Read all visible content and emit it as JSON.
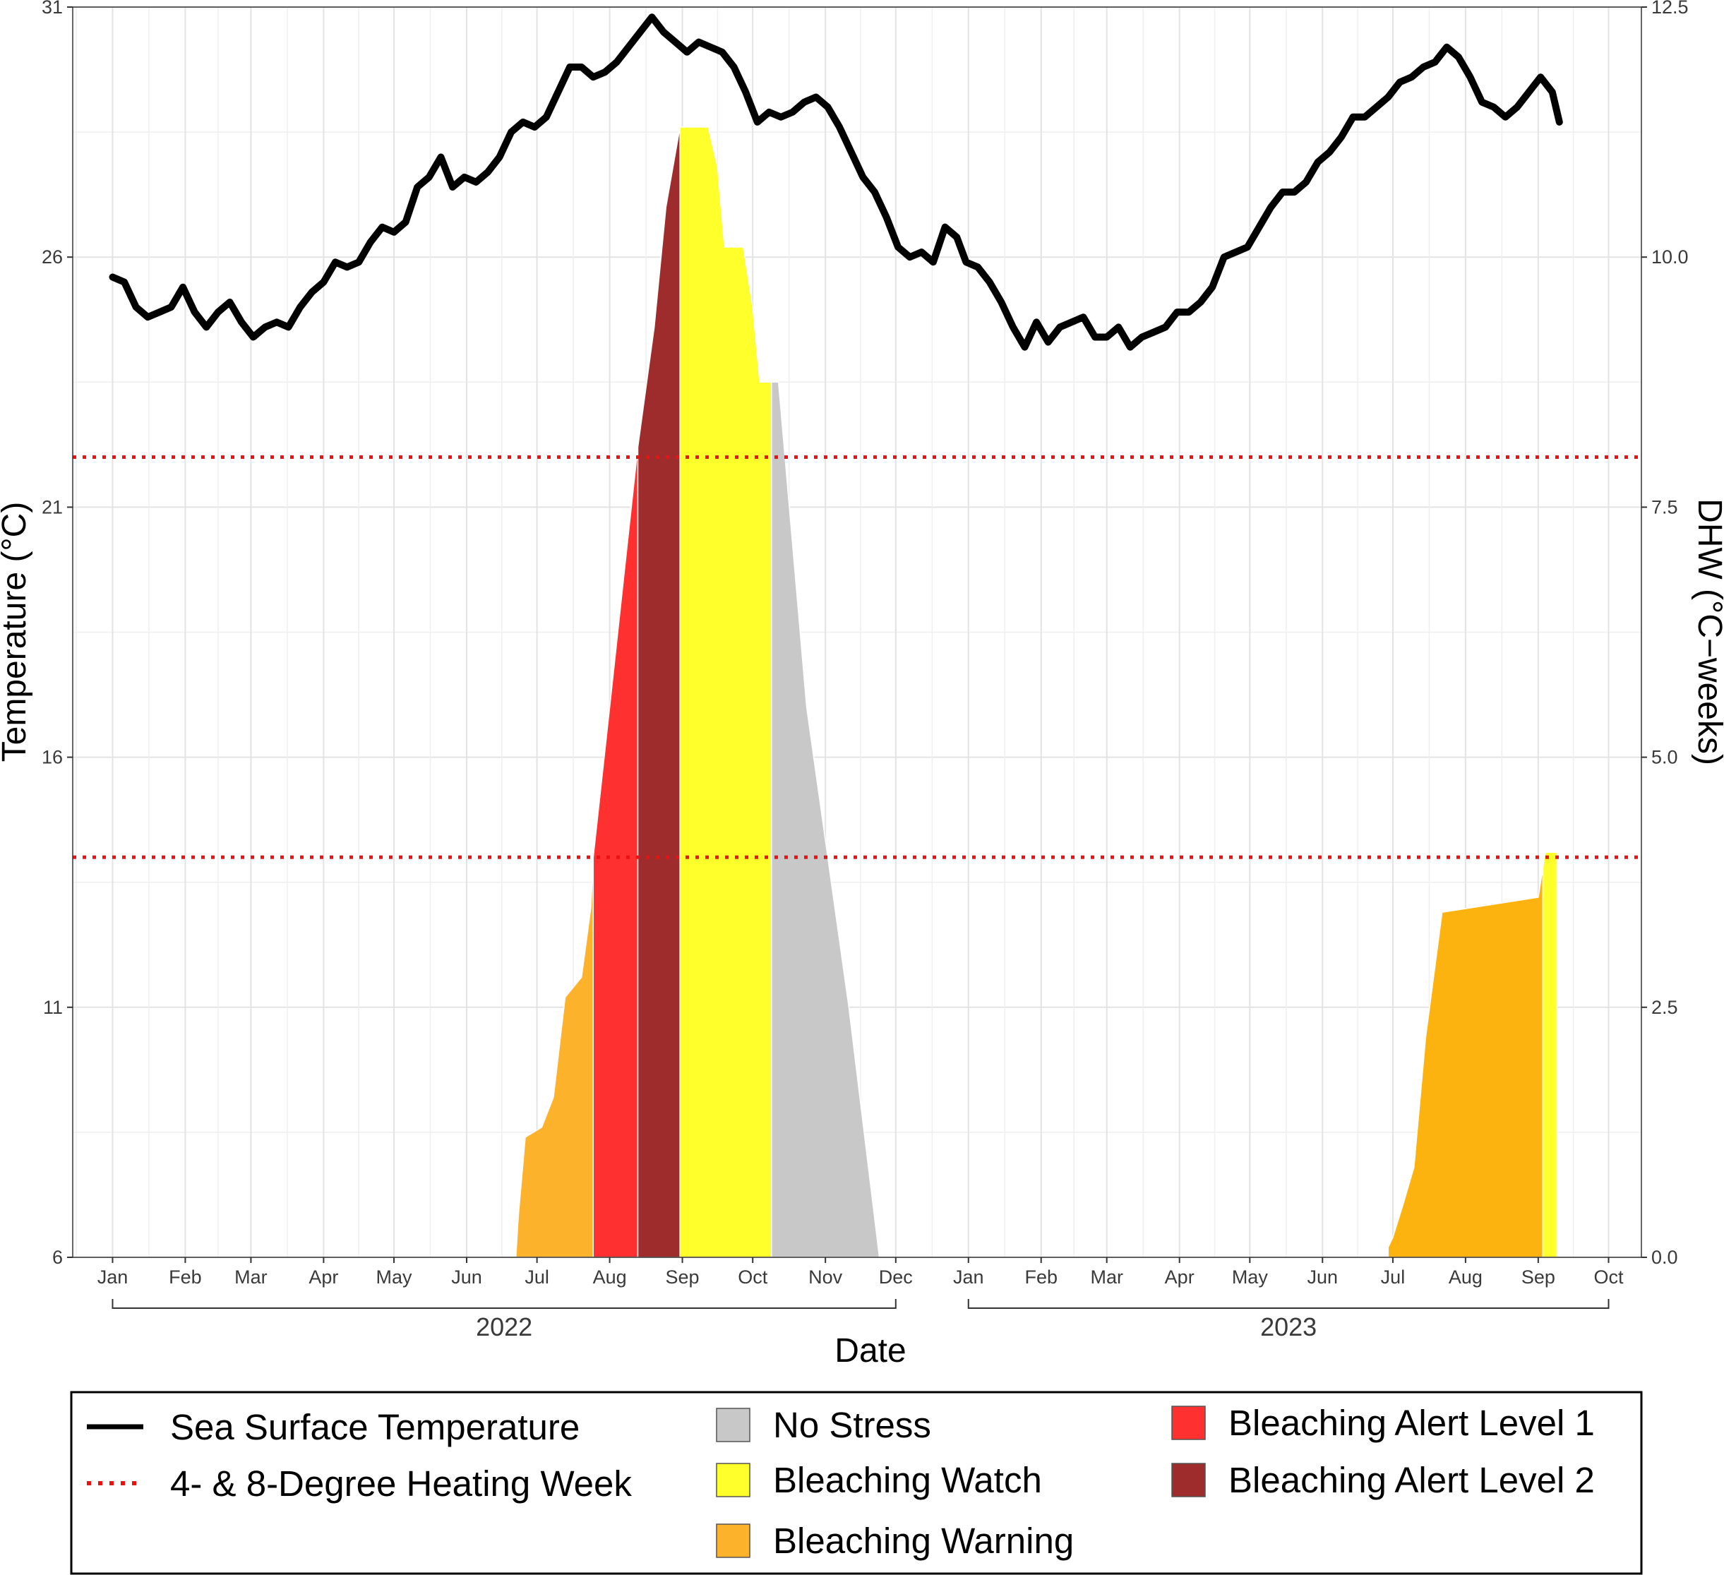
{
  "chart_data": {
    "type": "line",
    "xlabel": "Date",
    "ylabel_left": "Temperature (°C)",
    "ylabel_right": "DHW (°C−weeks)",
    "ylim_left": [
      6,
      31
    ],
    "ylim_right": [
      0,
      12.5
    ],
    "left_ticks": [
      "6",
      "11",
      "16",
      "21",
      "26",
      "31"
    ],
    "right_ticks": [
      "0.0",
      "2.5",
      "5.0",
      "7.5",
      "10.0",
      "12.5"
    ],
    "x_range": [
      "2021-12-15",
      "2023-10-15"
    ],
    "month_ticks": [
      {
        "date": "2022-01-01",
        "label": "Jan"
      },
      {
        "date": "2022-02-01",
        "label": "Feb"
      },
      {
        "date": "2022-03-01",
        "label": "Mar"
      },
      {
        "date": "2022-04-01",
        "label": "Apr"
      },
      {
        "date": "2022-05-01",
        "label": "May"
      },
      {
        "date": "2022-06-01",
        "label": "Jun"
      },
      {
        "date": "2022-07-01",
        "label": "Jul"
      },
      {
        "date": "2022-08-01",
        "label": "Aug"
      },
      {
        "date": "2022-09-01",
        "label": "Sep"
      },
      {
        "date": "2022-10-01",
        "label": "Oct"
      },
      {
        "date": "2022-11-01",
        "label": "Nov"
      },
      {
        "date": "2022-12-01",
        "label": "Dec"
      },
      {
        "date": "2023-01-01",
        "label": "Jan"
      },
      {
        "date": "2023-02-01",
        "label": "Feb"
      },
      {
        "date": "2023-03-01",
        "label": "Mar"
      },
      {
        "date": "2023-04-01",
        "label": "Apr"
      },
      {
        "date": "2023-05-01",
        "label": "May"
      },
      {
        "date": "2023-06-01",
        "label": "Jun"
      },
      {
        "date": "2023-07-01",
        "label": "Jul"
      },
      {
        "date": "2023-08-01",
        "label": "Aug"
      },
      {
        "date": "2023-09-01",
        "label": "Sep"
      },
      {
        "date": "2023-10-01",
        "label": "Oct"
      }
    ],
    "year_groups": [
      {
        "label": "2022",
        "start": "2022-01-01",
        "end": "2022-12-01"
      },
      {
        "label": "2023",
        "start": "2023-01-01",
        "end": "2023-10-01"
      }
    ],
    "dhw_thresholds": [
      4,
      8
    ],
    "sst_series": {
      "name": "Sea Surface Temperature",
      "color": "#000000",
      "points": [
        [
          "2022-01-01",
          25.6
        ],
        [
          "2022-01-06",
          25.5
        ],
        [
          "2022-01-11",
          25.0
        ],
        [
          "2022-01-16",
          24.8
        ],
        [
          "2022-01-21",
          24.9
        ],
        [
          "2022-01-26",
          25.0
        ],
        [
          "2022-01-31",
          25.4
        ],
        [
          "2022-02-05",
          24.9
        ],
        [
          "2022-02-10",
          24.6
        ],
        [
          "2022-02-15",
          24.9
        ],
        [
          "2022-02-20",
          25.1
        ],
        [
          "2022-02-25",
          24.7
        ],
        [
          "2022-03-02",
          24.4
        ],
        [
          "2022-03-07",
          24.6
        ],
        [
          "2022-03-12",
          24.7
        ],
        [
          "2022-03-17",
          24.6
        ],
        [
          "2022-03-22",
          25.0
        ],
        [
          "2022-03-27",
          25.3
        ],
        [
          "2022-04-01",
          25.5
        ],
        [
          "2022-04-06",
          25.9
        ],
        [
          "2022-04-11",
          25.8
        ],
        [
          "2022-04-16",
          25.9
        ],
        [
          "2022-04-21",
          26.3
        ],
        [
          "2022-04-26",
          26.6
        ],
        [
          "2022-05-01",
          26.5
        ],
        [
          "2022-05-06",
          26.7
        ],
        [
          "2022-05-11",
          27.4
        ],
        [
          "2022-05-16",
          27.6
        ],
        [
          "2022-05-21",
          28.0
        ],
        [
          "2022-05-26",
          27.4
        ],
        [
          "2022-05-31",
          27.6
        ],
        [
          "2022-06-05",
          27.5
        ],
        [
          "2022-06-10",
          27.7
        ],
        [
          "2022-06-15",
          28.0
        ],
        [
          "2022-06-20",
          28.5
        ],
        [
          "2022-06-25",
          28.7
        ],
        [
          "2022-06-30",
          28.6
        ],
        [
          "2022-07-05",
          28.8
        ],
        [
          "2022-07-10",
          29.3
        ],
        [
          "2022-07-15",
          29.8
        ],
        [
          "2022-07-20",
          29.8
        ],
        [
          "2022-07-25",
          29.6
        ],
        [
          "2022-07-30",
          29.7
        ],
        [
          "2022-08-04",
          29.9
        ],
        [
          "2022-08-09",
          30.2
        ],
        [
          "2022-08-14",
          30.5
        ],
        [
          "2022-08-19",
          30.8
        ],
        [
          "2022-08-24",
          30.5
        ],
        [
          "2022-08-29",
          30.3
        ],
        [
          "2022-09-03",
          30.1
        ],
        [
          "2022-09-08",
          30.3
        ],
        [
          "2022-09-13",
          30.2
        ],
        [
          "2022-09-18",
          30.1
        ],
        [
          "2022-09-23",
          29.8
        ],
        [
          "2022-09-28",
          29.3
        ],
        [
          "2022-10-03",
          28.7
        ],
        [
          "2022-10-08",
          28.9
        ],
        [
          "2022-10-13",
          28.8
        ],
        [
          "2022-10-18",
          28.9
        ],
        [
          "2022-10-23",
          29.1
        ],
        [
          "2022-10-28",
          29.2
        ],
        [
          "2022-11-02",
          29.0
        ],
        [
          "2022-11-07",
          28.6
        ],
        [
          "2022-11-12",
          28.1
        ],
        [
          "2022-11-17",
          27.6
        ],
        [
          "2022-11-22",
          27.3
        ],
        [
          "2022-11-27",
          26.8
        ],
        [
          "2022-12-02",
          26.2
        ],
        [
          "2022-12-07",
          26.0
        ],
        [
          "2022-12-12",
          26.1
        ],
        [
          "2022-12-17",
          25.9
        ],
        [
          "2022-12-22",
          26.6
        ],
        [
          "2022-12-27",
          26.4
        ],
        [
          "2022-12-31",
          25.9
        ],
        [
          "2023-01-05",
          25.8
        ],
        [
          "2023-01-10",
          25.5
        ],
        [
          "2023-01-15",
          25.1
        ],
        [
          "2023-01-20",
          24.6
        ],
        [
          "2023-01-25",
          24.2
        ],
        [
          "2023-01-30",
          24.7
        ],
        [
          "2023-02-04",
          24.3
        ],
        [
          "2023-02-09",
          24.6
        ],
        [
          "2023-02-14",
          24.7
        ],
        [
          "2023-02-19",
          24.8
        ],
        [
          "2023-02-24",
          24.4
        ],
        [
          "2023-03-01",
          24.4
        ],
        [
          "2023-03-06",
          24.6
        ],
        [
          "2023-03-11",
          24.2
        ],
        [
          "2023-03-16",
          24.4
        ],
        [
          "2023-03-21",
          24.5
        ],
        [
          "2023-03-26",
          24.6
        ],
        [
          "2023-03-31",
          24.9
        ],
        [
          "2023-04-05",
          24.9
        ],
        [
          "2023-04-10",
          25.1
        ],
        [
          "2023-04-15",
          25.4
        ],
        [
          "2023-04-20",
          26.0
        ],
        [
          "2023-04-25",
          26.1
        ],
        [
          "2023-04-30",
          26.2
        ],
        [
          "2023-05-05",
          26.6
        ],
        [
          "2023-05-10",
          27.0
        ],
        [
          "2023-05-15",
          27.3
        ],
        [
          "2023-05-20",
          27.3
        ],
        [
          "2023-05-25",
          27.5
        ],
        [
          "2023-05-30",
          27.9
        ],
        [
          "2023-06-04",
          28.1
        ],
        [
          "2023-06-09",
          28.4
        ],
        [
          "2023-06-14",
          28.8
        ],
        [
          "2023-06-19",
          28.8
        ],
        [
          "2023-06-24",
          29.0
        ],
        [
          "2023-06-29",
          29.2
        ],
        [
          "2023-07-04",
          29.5
        ],
        [
          "2023-07-09",
          29.6
        ],
        [
          "2023-07-14",
          29.8
        ],
        [
          "2023-07-19",
          29.9
        ],
        [
          "2023-07-24",
          30.2
        ],
        [
          "2023-07-29",
          30.0
        ],
        [
          "2023-08-03",
          29.6
        ],
        [
          "2023-08-08",
          29.1
        ],
        [
          "2023-08-13",
          29.0
        ],
        [
          "2023-08-18",
          28.8
        ],
        [
          "2023-08-23",
          29.0
        ],
        [
          "2023-08-28",
          29.3
        ],
        [
          "2023-09-02",
          29.6
        ],
        [
          "2023-09-07",
          29.3
        ],
        [
          "2023-09-10",
          28.7
        ]
      ]
    },
    "dhw_categories": [
      {
        "name": "Bleaching Warning",
        "color": "#fdb22c",
        "points": [
          [
            "2022-06-22",
            0.0
          ],
          [
            "2022-06-23",
            0.4
          ],
          [
            "2022-06-26",
            1.2
          ],
          [
            "2022-07-03",
            1.3
          ],
          [
            "2022-07-08",
            1.6
          ],
          [
            "2022-07-13",
            2.6
          ],
          [
            "2022-07-20",
            2.8
          ],
          [
            "2022-07-24",
            3.5
          ],
          [
            "2022-07-25",
            4.0
          ]
        ]
      },
      {
        "name": "Bleaching Alert Level 1",
        "color": "#ff3030",
        "points": [
          [
            "2022-07-25",
            4.0
          ],
          [
            "2022-08-01",
            5.5
          ],
          [
            "2022-08-07",
            6.8
          ],
          [
            "2022-08-13",
            8.1
          ]
        ]
      },
      {
        "name": "Bleaching Alert Level 2",
        "color": "#9e2c2c",
        "points": [
          [
            "2022-08-13",
            8.1
          ],
          [
            "2022-08-20",
            9.3
          ],
          [
            "2022-08-25",
            10.5
          ],
          [
            "2022-08-31",
            11.3
          ]
        ]
      },
      {
        "name": "Bleaching Watch",
        "color": "#ffff2c",
        "points": [
          [
            "2022-08-31",
            11.3
          ],
          [
            "2022-09-12",
            11.3
          ],
          [
            "2022-09-16",
            10.9
          ],
          [
            "2022-09-19",
            10.1
          ],
          [
            "2022-09-27",
            10.1
          ],
          [
            "2022-10-01",
            9.5
          ],
          [
            "2022-10-04",
            8.75
          ],
          [
            "2022-10-09",
            8.75
          ]
        ]
      },
      {
        "name": "No Stress",
        "color": "#c8c8c8",
        "points": [
          [
            "2022-10-09",
            8.75
          ],
          [
            "2022-10-12",
            8.75
          ],
          [
            "2022-10-24",
            5.5
          ],
          [
            "2022-11-11",
            2.5
          ],
          [
            "2022-11-24",
            0.0
          ]
        ]
      },
      {
        "name": "Bleaching Warning",
        "color": "#fdb30f",
        "points": [
          [
            "2023-06-29",
            0.1
          ],
          [
            "2023-07-01",
            0.2
          ],
          [
            "2023-07-05",
            0.5
          ],
          [
            "2023-07-10",
            0.9
          ],
          [
            "2023-07-15",
            2.2
          ],
          [
            "2023-07-22",
            3.45
          ],
          [
            "2023-09-01",
            3.6
          ],
          [
            "2023-09-03",
            3.9
          ]
        ]
      },
      {
        "name": "Bleaching Watch",
        "color": "#ffff2c",
        "points": [
          [
            "2023-09-03",
            3.9
          ],
          [
            "2023-09-04",
            4.05
          ],
          [
            "2023-09-09",
            4.05
          ]
        ]
      }
    ],
    "legend": {
      "placement": "bottom",
      "items": [
        {
          "label": "Sea Surface Temperature",
          "kind": "line",
          "color": "#000000"
        },
        {
          "label": "4- & 8-Degree Heating Week",
          "kind": "dotted",
          "color": "#ee1111"
        },
        {
          "label": "No Stress",
          "kind": "box",
          "color": "#c8c8c8"
        },
        {
          "label": "Bleaching Watch",
          "kind": "box",
          "color": "#ffff2c"
        },
        {
          "label": "Bleaching Warning",
          "kind": "box",
          "color": "#fdb22c"
        },
        {
          "label": "Bleaching Alert Level 1",
          "kind": "box",
          "color": "#ff3030"
        },
        {
          "label": "Bleaching Alert Level 2",
          "kind": "box",
          "color": "#9e2c2c"
        }
      ]
    },
    "grid": true
  }
}
